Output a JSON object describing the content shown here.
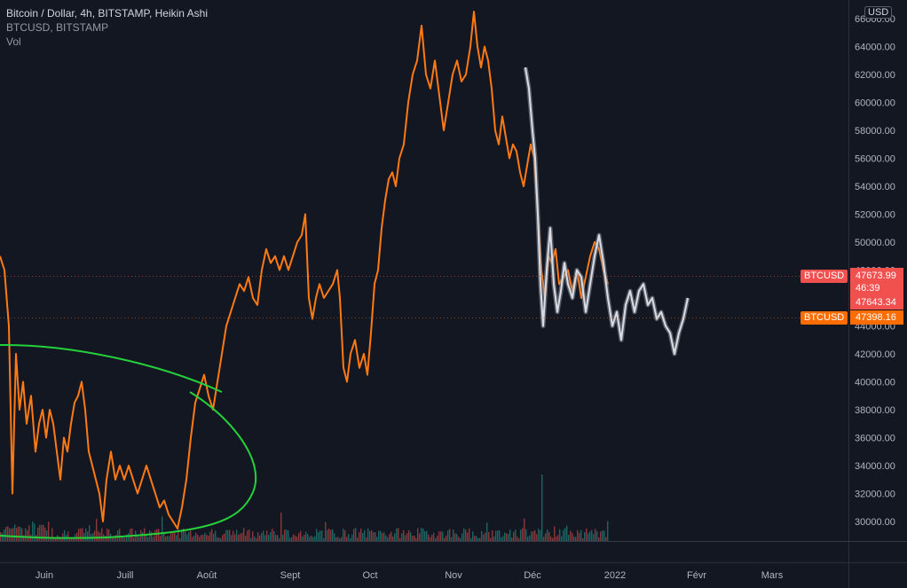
{
  "legend": {
    "title": "Bitcoin / Dollar, 4h, BITSTAMP, Heikin Ashi",
    "symbol_line": "BTCUSD, BITSTAMP",
    "volume_label": "Vol"
  },
  "currency_badge": "USD",
  "colors": {
    "background": "#131722",
    "orange_series": "#ff7a14",
    "white_series": "#d9dce3",
    "curve": "#25d13a",
    "vol_up": "#26a69a",
    "vol_down": "#ef5350",
    "tag_red": "#f0514f",
    "tag_orange": "#ff6d00"
  },
  "price_tags": {
    "symbol_red": "BTCUSD",
    "symbol_orange": "BTCUSD",
    "last_price": "47673.99",
    "countdown": "46:39",
    "other_price": "47643.34",
    "orange_price": "47398.16"
  },
  "chart_data": {
    "type": "line",
    "ylim": [
      28000,
      67000
    ],
    "y_ticks": [
      "30000.00",
      "32000.00",
      "34000.00",
      "36000.00",
      "38000.00",
      "40000.00",
      "42000.00",
      "44000.00",
      "46000.00",
      "48000.00",
      "50000.00",
      "52000.00",
      "54000.00",
      "56000.00",
      "58000.00",
      "60000.00",
      "62000.00",
      "64000.00",
      "66000.00"
    ],
    "x_ticks": [
      "Juin",
      "Juill",
      "Août",
      "Sept",
      "Oct",
      "Nov",
      "Déc",
      "2022",
      "Févr",
      "Mars"
    ],
    "series": [
      {
        "color": "orange",
        "values": [
          [
            0,
            49000
          ],
          [
            5,
            48000
          ],
          [
            10,
            44000
          ],
          [
            14,
            32000
          ],
          [
            18,
            42000
          ],
          [
            22,
            38000
          ],
          [
            26,
            40000
          ],
          [
            30,
            37000
          ],
          [
            35,
            39000
          ],
          [
            40,
            35000
          ],
          [
            44,
            37000
          ],
          [
            48,
            38000
          ],
          [
            52,
            36000
          ],
          [
            56,
            38000
          ],
          [
            60,
            37000
          ],
          [
            64,
            35000
          ],
          [
            68,
            33000
          ],
          [
            72,
            36000
          ],
          [
            76,
            35000
          ],
          [
            80,
            37000
          ],
          [
            84,
            38500
          ],
          [
            88,
            39000
          ],
          [
            92,
            40000
          ],
          [
            96,
            38000
          ],
          [
            100,
            35000
          ],
          [
            104,
            34000
          ],
          [
            108,
            33000
          ],
          [
            112,
            32000
          ],
          [
            116,
            30000
          ],
          [
            120,
            33000
          ],
          [
            125,
            35000
          ],
          [
            130,
            33000
          ],
          [
            135,
            34000
          ],
          [
            140,
            33000
          ],
          [
            145,
            34000
          ],
          [
            150,
            33000
          ],
          [
            155,
            32000
          ],
          [
            160,
            33000
          ],
          [
            165,
            34000
          ],
          [
            170,
            33000
          ],
          [
            175,
            32000
          ],
          [
            180,
            31000
          ],
          [
            185,
            31500
          ],
          [
            190,
            30500
          ],
          [
            195,
            30000
          ],
          [
            200,
            29500
          ],
          [
            205,
            31000
          ],
          [
            210,
            33000
          ],
          [
            215,
            36000
          ],
          [
            220,
            38500
          ],
          [
            225,
            39500
          ],
          [
            230,
            40500
          ],
          [
            235,
            39000
          ],
          [
            240,
            38000
          ],
          [
            245,
            40000
          ],
          [
            250,
            42000
          ],
          [
            255,
            44000
          ],
          [
            260,
            45000
          ],
          [
            265,
            46000
          ],
          [
            270,
            47000
          ],
          [
            275,
            46500
          ],
          [
            280,
            47500
          ],
          [
            285,
            46000
          ],
          [
            290,
            45500
          ],
          [
            295,
            48000
          ],
          [
            300,
            49500
          ],
          [
            305,
            48500
          ],
          [
            310,
            49000
          ],
          [
            315,
            48000
          ],
          [
            320,
            49000
          ],
          [
            325,
            48000
          ],
          [
            330,
            49000
          ],
          [
            335,
            50000
          ],
          [
            340,
            50500
          ],
          [
            344,
            52000
          ],
          [
            348,
            46000
          ],
          [
            352,
            44500
          ],
          [
            356,
            46000
          ],
          [
            360,
            47000
          ],
          [
            365,
            46000
          ],
          [
            370,
            46500
          ],
          [
            375,
            47000
          ],
          [
            380,
            48000
          ],
          [
            383,
            46000
          ],
          [
            387,
            41000
          ],
          [
            391,
            40000
          ],
          [
            395,
            42000
          ],
          [
            400,
            43000
          ],
          [
            405,
            41000
          ],
          [
            410,
            42000
          ],
          [
            414,
            40500
          ],
          [
            418,
            43500
          ],
          [
            422,
            47000
          ],
          [
            426,
            48000
          ],
          [
            430,
            51000
          ],
          [
            434,
            53000
          ],
          [
            438,
            54500
          ],
          [
            442,
            55000
          ],
          [
            446,
            54000
          ],
          [
            450,
            56000
          ],
          [
            455,
            57000
          ],
          [
            460,
            60000
          ],
          [
            465,
            62000
          ],
          [
            470,
            63000
          ],
          [
            475,
            65500
          ],
          [
            480,
            62000
          ],
          [
            485,
            61000
          ],
          [
            490,
            63000
          ],
          [
            495,
            60500
          ],
          [
            500,
            58000
          ],
          [
            505,
            60000
          ],
          [
            510,
            62000
          ],
          [
            515,
            63000
          ],
          [
            520,
            61500
          ],
          [
            525,
            62000
          ],
          [
            530,
            64000
          ],
          [
            534,
            66500
          ],
          [
            538,
            64000
          ],
          [
            542,
            62500
          ],
          [
            546,
            64000
          ],
          [
            550,
            63000
          ],
          [
            554,
            61000
          ],
          [
            558,
            58000
          ],
          [
            562,
            57000
          ],
          [
            566,
            59000
          ],
          [
            570,
            57500
          ],
          [
            574,
            56000
          ],
          [
            578,
            57000
          ],
          [
            582,
            56500
          ],
          [
            586,
            55000
          ],
          [
            590,
            54000
          ],
          [
            594,
            55500
          ],
          [
            598,
            57000
          ],
          [
            602,
            56000
          ],
          [
            606,
            52000
          ],
          [
            610,
            48000
          ],
          [
            614,
            46000
          ],
          [
            618,
            49000
          ],
          [
            622,
            48500
          ],
          [
            626,
            49500
          ],
          [
            630,
            47000
          ],
          [
            635,
            47500
          ],
          [
            640,
            48000
          ],
          [
            645,
            46500
          ],
          [
            650,
            48000
          ],
          [
            655,
            46000
          ],
          [
            660,
            47500
          ],
          [
            665,
            49000
          ],
          [
            670,
            50000
          ],
          [
            675,
            49500
          ],
          [
            680,
            48000
          ],
          [
            685,
            47000
          ]
        ]
      },
      {
        "color": "white",
        "values": [
          [
            592,
            62500
          ],
          [
            596,
            61000
          ],
          [
            600,
            58000
          ],
          [
            603,
            56000
          ],
          [
            606,
            52000
          ],
          [
            609,
            47000
          ],
          [
            612,
            44000
          ],
          [
            616,
            48000
          ],
          [
            620,
            51000
          ],
          [
            624,
            47000
          ],
          [
            628,
            45000
          ],
          [
            632,
            46500
          ],
          [
            636,
            48500
          ],
          [
            640,
            47000
          ],
          [
            645,
            46000
          ],
          [
            650,
            48000
          ],
          [
            655,
            47500
          ],
          [
            660,
            45000
          ],
          [
            665,
            47000
          ],
          [
            670,
            49000
          ],
          [
            675,
            50500
          ],
          [
            680,
            48500
          ],
          [
            685,
            46000
          ],
          [
            690,
            44000
          ],
          [
            695,
            45000
          ],
          [
            700,
            43000
          ],
          [
            705,
            45500
          ],
          [
            710,
            46500
          ],
          [
            715,
            45000
          ],
          [
            720,
            46500
          ],
          [
            725,
            47000
          ],
          [
            730,
            45500
          ],
          [
            735,
            46000
          ],
          [
            740,
            44500
          ],
          [
            745,
            45000
          ],
          [
            750,
            44000
          ],
          [
            755,
            43500
          ],
          [
            760,
            42000
          ],
          [
            765,
            43500
          ],
          [
            770,
            44500
          ],
          [
            775,
            46000
          ]
        ]
      }
    ]
  }
}
